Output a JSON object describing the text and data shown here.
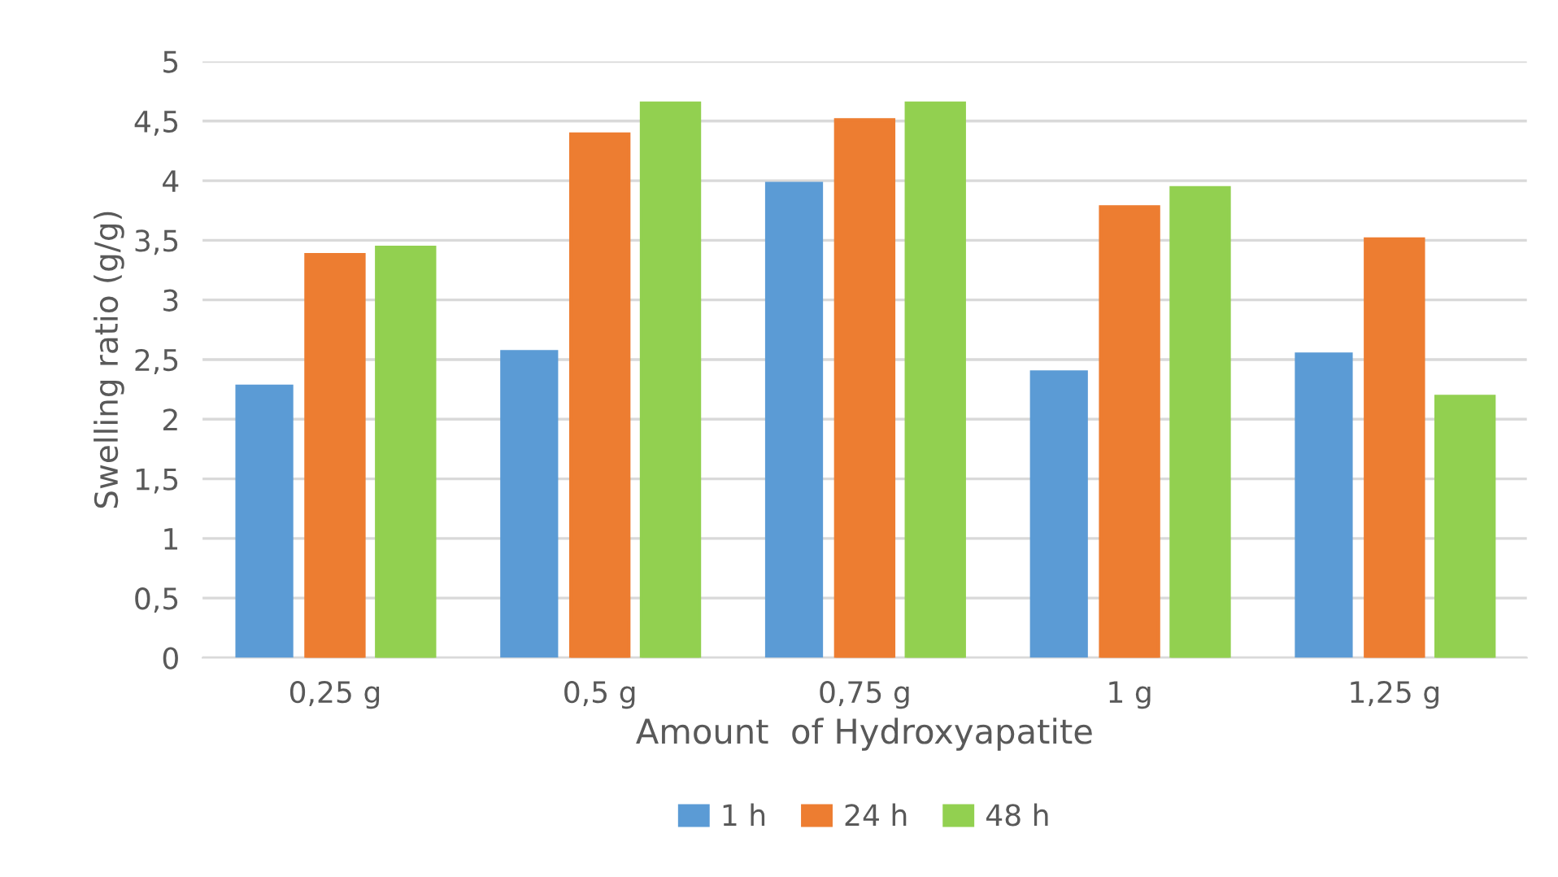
{
  "chart_data": {
    "type": "bar",
    "xlabel": "Amount  of Hydroxyapatite",
    "ylabel": "Swelling ratio (g/g)",
    "categories": [
      "0,25 g",
      "0,5 g",
      "0,75 g",
      "1 g",
      "1,25 g"
    ],
    "series": [
      {
        "name": "1 h",
        "color": "#5b9bd5",
        "values": [
          2.29,
          2.58,
          3.99,
          2.41,
          2.56
        ]
      },
      {
        "name": "24 h",
        "color": "#ed7d31",
        "values": [
          3.38,
          4.39,
          4.51,
          3.78,
          3.51
        ]
      },
      {
        "name": "48 h",
        "color": "#92d050",
        "values": [
          3.44,
          4.65,
          4.65,
          3.94,
          2.19
        ]
      }
    ],
    "ylim": [
      0,
      5
    ],
    "yticks": [
      {
        "value": 0,
        "label": "0"
      },
      {
        "value": 0.5,
        "label": "0,5"
      },
      {
        "value": 1,
        "label": "1"
      },
      {
        "value": 1.5,
        "label": "1,5"
      },
      {
        "value": 2,
        "label": "2"
      },
      {
        "value": 2.5,
        "label": "2,5"
      },
      {
        "value": 3,
        "label": "3"
      },
      {
        "value": 3.5,
        "label": "3,5"
      },
      {
        "value": 4,
        "label": "4"
      },
      {
        "value": 4.5,
        "label": "4,5"
      },
      {
        "value": 5,
        "label": "5"
      }
    ],
    "grid": "y",
    "legend": "bottom"
  }
}
